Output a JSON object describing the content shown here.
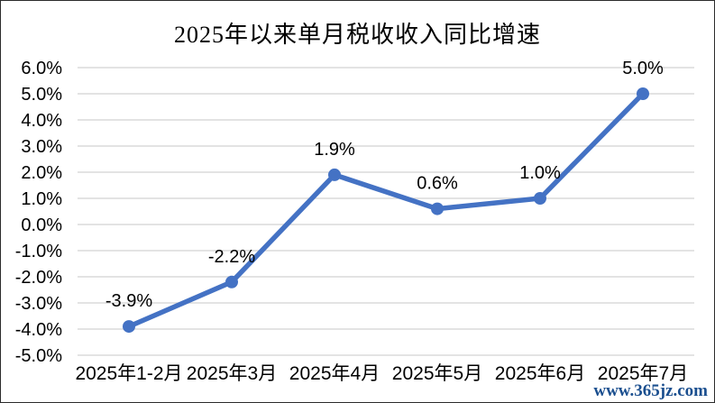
{
  "page": {
    "watermark": "www.365jz.com"
  },
  "chart_data": {
    "type": "line",
    "title": "2025年以来单月税收收入同比增速",
    "categories": [
      "2025年1-2月",
      "2025年3月",
      "2025年4月",
      "2025年5月",
      "2025年6月",
      "2025年7月"
    ],
    "values": [
      -3.9,
      -2.2,
      1.9,
      0.6,
      1.0,
      5.0
    ],
    "data_labels": [
      "-3.9%",
      "-2.2%",
      "1.9%",
      "0.6%",
      "1.0%",
      "5.0%"
    ],
    "xlabel": "",
    "ylabel": "",
    "ylim": [
      -5,
      6
    ],
    "y_ticks": [
      {
        "value": 6,
        "label": "6.0%"
      },
      {
        "value": 5,
        "label": "5.0%"
      },
      {
        "value": 4,
        "label": "4.0%"
      },
      {
        "value": 3,
        "label": "3.0%"
      },
      {
        "value": 2,
        "label": "2.0%"
      },
      {
        "value": 1,
        "label": "1.0%"
      },
      {
        "value": 0,
        "label": "0.0%"
      },
      {
        "value": -1,
        "label": "-1.0%"
      },
      {
        "value": -2,
        "label": "-2.0%"
      },
      {
        "value": -3,
        "label": "-3.0%"
      },
      {
        "value": -4,
        "label": "-4.0%"
      },
      {
        "value": -5,
        "label": "-5.0%"
      }
    ],
    "grid": "horizontal",
    "legend": "none",
    "colors": {
      "line": "#4472C4",
      "marker": "#4472C4",
      "gridline": "#DADADA",
      "text": "#000000",
      "watermark": "#1B4F8F"
    }
  }
}
